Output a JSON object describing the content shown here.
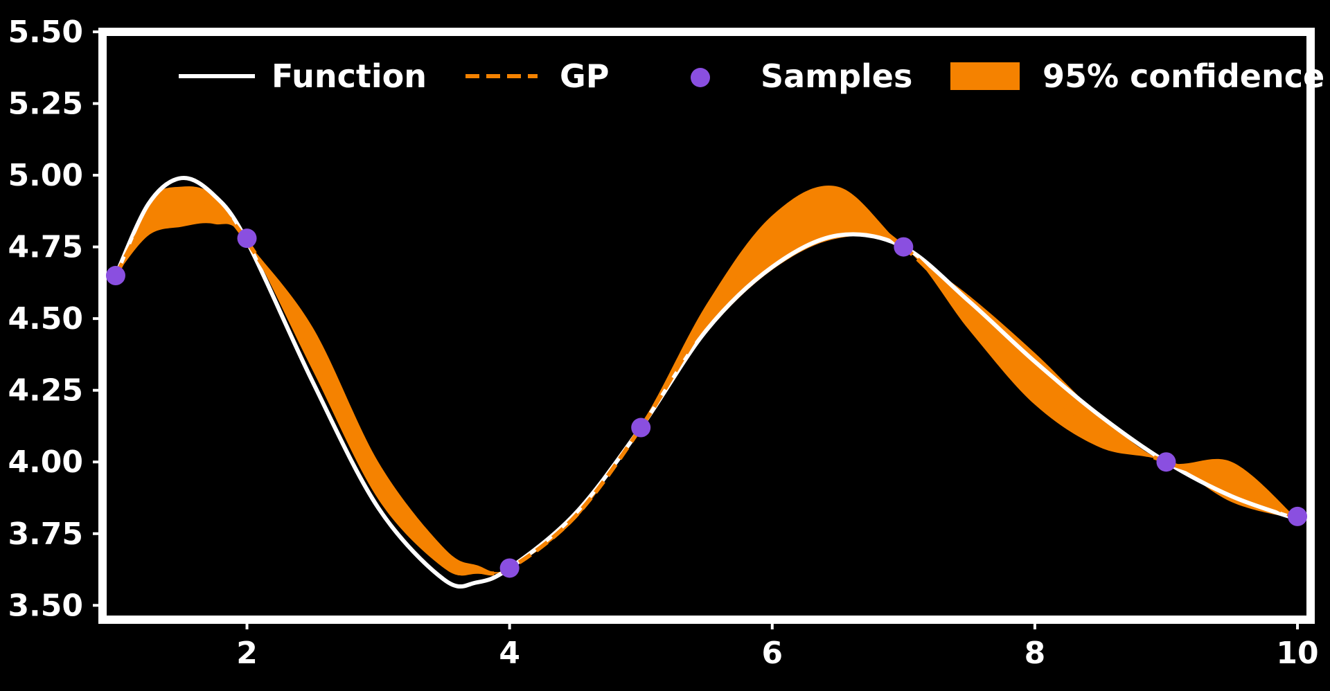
{
  "chart_data": {
    "type": "line",
    "title": "",
    "xlabel": "",
    "ylabel": "",
    "xlim": [
      0.9,
      10.1
    ],
    "ylim": [
      3.45,
      5.5
    ],
    "x_ticks": [
      2,
      4,
      6,
      8,
      10
    ],
    "x_tick_labels": [
      "2",
      "4",
      "6",
      "8",
      "10"
    ],
    "y_ticks": [
      3.5,
      3.75,
      4.0,
      4.25,
      4.5,
      4.75,
      5.0,
      5.25,
      5.5
    ],
    "y_tick_labels": [
      "3.50",
      "3.75",
      "4.00",
      "4.25",
      "4.50",
      "4.75",
      "5.00",
      "5.25",
      "5.50"
    ],
    "grid": false,
    "legend_placement": "top",
    "legend": [
      {
        "label": "Function",
        "kind": "line"
      },
      {
        "label": "GP",
        "kind": "dashed-line"
      },
      {
        "label": "Samples",
        "kind": "marker"
      },
      {
        "label": "95% confidence",
        "kind": "band"
      }
    ],
    "colors": {
      "background": "#000000",
      "axes": "#ffffff",
      "function": "#ffffff",
      "gp": "#f58200",
      "samples": "#8a4fe0",
      "confidence": "#f58200"
    },
    "series": [
      {
        "name": "Function",
        "x": [
          1.0,
          1.25,
          1.5,
          1.75,
          2.0,
          2.5,
          3.0,
          3.5,
          3.75,
          4.0,
          4.5,
          5.0,
          5.5,
          6.0,
          6.5,
          7.0,
          7.5,
          8.0,
          8.5,
          9.0,
          9.5,
          10.0
        ],
        "y": [
          4.65,
          4.9,
          4.99,
          4.93,
          4.77,
          4.28,
          3.84,
          3.59,
          3.58,
          3.63,
          3.82,
          4.12,
          4.46,
          4.68,
          4.79,
          4.75,
          4.56,
          4.35,
          4.16,
          4.0,
          3.88,
          3.8
        ]
      },
      {
        "name": "GP",
        "x": [
          1.0,
          1.25,
          1.5,
          1.75,
          2.0,
          2.5,
          3.0,
          3.5,
          3.75,
          4.0,
          4.5,
          5.0,
          5.5,
          6.0,
          6.5,
          7.0,
          7.5,
          8.0,
          8.5,
          9.0,
          9.5,
          10.0
        ],
        "y": [
          4.65,
          4.85,
          4.91,
          4.89,
          4.77,
          4.39,
          3.93,
          3.66,
          3.62,
          3.63,
          3.81,
          4.12,
          4.49,
          4.77,
          4.88,
          4.75,
          4.52,
          4.29,
          4.1,
          4.0,
          3.92,
          3.8
        ]
      },
      {
        "name": "Samples",
        "x": [
          1,
          2,
          4,
          5,
          7,
          9,
          10
        ],
        "y": [
          4.65,
          4.78,
          3.63,
          4.12,
          4.75,
          4.0,
          3.81
        ]
      },
      {
        "name": "95% confidence",
        "x": [
          1.0,
          1.25,
          1.5,
          1.75,
          2.0,
          2.5,
          3.0,
          3.5,
          3.75,
          4.0,
          4.5,
          5.0,
          5.5,
          6.0,
          6.5,
          7.0,
          7.5,
          8.0,
          8.5,
          9.0,
          9.5,
          10.0
        ],
        "lower": [
          4.65,
          4.79,
          4.82,
          4.83,
          4.77,
          4.32,
          3.87,
          3.63,
          3.61,
          3.63,
          3.8,
          4.12,
          4.45,
          4.67,
          4.78,
          4.75,
          4.46,
          4.2,
          4.05,
          4.0,
          3.86,
          3.8
        ],
        "upper": [
          4.65,
          4.91,
          4.96,
          4.93,
          4.77,
          4.47,
          4.0,
          3.7,
          3.64,
          3.63,
          3.83,
          4.13,
          4.55,
          4.86,
          4.96,
          4.75,
          4.58,
          4.38,
          4.16,
          4.0,
          4.0,
          3.8
        ]
      }
    ]
  }
}
